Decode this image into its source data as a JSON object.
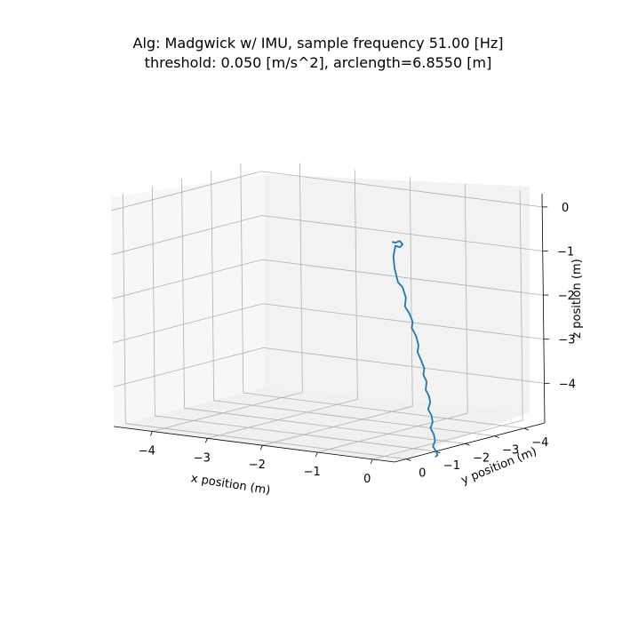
{
  "chart_data": {
    "type": "line",
    "projection": "3d",
    "title": [
      "Alg: Madgwick w/ IMU, sample frequency 51.00 [Hz]",
      "threshold: 0.050 [m/s^2], arclength=6.8550 [m]"
    ],
    "xlabel": "x position (m)",
    "ylabel": "y position (m)",
    "zlabel": "z position (m)",
    "xlim": [
      -4.7,
      0.4
    ],
    "ylim": [
      -4.7,
      0.4
    ],
    "zlim": [
      -4.9,
      0.3
    ],
    "x_ticks": [
      -4,
      -3,
      -2,
      -1,
      0
    ],
    "y_ticks": [
      -4,
      -3,
      -2,
      -1,
      0
    ],
    "z_ticks": [
      0,
      -1,
      -2,
      -3,
      -4
    ],
    "x_tick_labels": [
      "−4",
      "−3",
      "−2",
      "−1",
      "0"
    ],
    "y_tick_labels": [
      "−4",
      "−3",
      "−2",
      "−1",
      "0"
    ],
    "z_tick_labels": [
      "0",
      "−1",
      "−2",
      "−3",
      "−4"
    ],
    "grid": true,
    "line_color": "#1f77b4",
    "series": [
      {
        "x": [
          0.16,
          0.22,
          0.3,
          0.35,
          0.3,
          0.22,
          0.18,
          0.2,
          0.26,
          0.34,
          0.4,
          0.38,
          0.46,
          0.52,
          0.5,
          0.58,
          0.62,
          0.6,
          0.66,
          0.72,
          0.7,
          0.76,
          0.74,
          0.8,
          0.82,
          0.78,
          0.84,
          0.86,
          0.82,
          0.88,
          0.9,
          0.86,
          0.92,
          0.94,
          0.9
        ],
        "y": [
          -0.05,
          -0.05,
          -0.05,
          -0.05,
          -0.05,
          -0.05,
          -0.05,
          -0.05,
          -0.05,
          -0.05,
          -0.05,
          -0.05,
          -0.05,
          -0.05,
          -0.05,
          -0.05,
          -0.05,
          -0.05,
          -0.05,
          -0.05,
          -0.05,
          -0.05,
          -0.05,
          -0.05,
          -0.05,
          -0.05,
          -0.05,
          -0.05,
          -0.05,
          -0.05,
          -0.05,
          -0.05,
          -0.05,
          -0.05,
          -0.05
        ],
        "z": [
          -0.02,
          -0.03,
          0.02,
          -0.05,
          -0.12,
          -0.1,
          -0.35,
          -0.62,
          -0.92,
          -1.02,
          -1.25,
          -1.45,
          -1.6,
          -1.78,
          -1.92,
          -2.1,
          -2.3,
          -2.45,
          -2.62,
          -2.8,
          -2.95,
          -3.1,
          -3.28,
          -3.42,
          -3.56,
          -3.72,
          -3.85,
          -4.0,
          -4.14,
          -4.28,
          -4.42,
          -4.55,
          -4.66,
          -4.74,
          -4.78
        ]
      }
    ]
  }
}
